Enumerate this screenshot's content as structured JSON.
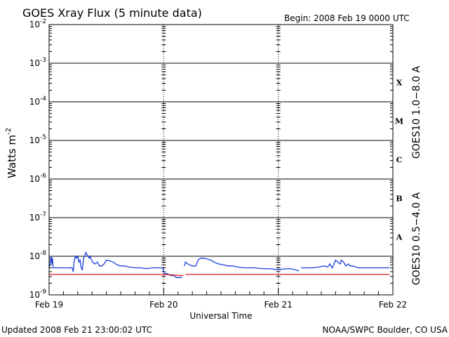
{
  "chart_data": {
    "type": "line",
    "title": "GOES Xray Flux (5 minute data)",
    "begin_label": "Begin:  2008 Feb 19 0000 UTC",
    "xlabel": "Universal Time",
    "ylabel": "Watts m",
    "ylabel_sup": "-2",
    "yscale": "log",
    "ylim_exp": [
      -9,
      -2
    ],
    "y_ticks": [
      {
        "base": "10",
        "exp": "-9",
        "value": -9
      },
      {
        "base": "10",
        "exp": "-8",
        "value": -8
      },
      {
        "base": "10",
        "exp": "-7",
        "value": -7
      },
      {
        "base": "10",
        "exp": "-6",
        "value": -6
      },
      {
        "base": "10",
        "exp": "-5",
        "value": -5
      },
      {
        "base": "10",
        "exp": "-4",
        "value": -4
      },
      {
        "base": "10",
        "exp": "-3",
        "value": -3
      },
      {
        "base": "10",
        "exp": "-2",
        "value": -2
      }
    ],
    "x_ticks": [
      {
        "label": "Feb 19",
        "day": 0
      },
      {
        "label": "Feb 20",
        "day": 1
      },
      {
        "label": "Feb 21",
        "day": 2
      },
      {
        "label": "Feb 22",
        "day": 3
      }
    ],
    "flare_classes": [
      {
        "label": "A",
        "value": -7.5
      },
      {
        "label": "B",
        "value": -6.5
      },
      {
        "label": "C",
        "value": -5.5
      },
      {
        "label": "M",
        "value": -4.5
      },
      {
        "label": "X",
        "value": -3.5
      }
    ],
    "series": [
      {
        "name": "GOES10 0.5−4.0 A",
        "color": "#1a3fe0",
        "points": [
          [
            0.0,
            -8.3
          ],
          [
            0.01,
            -8.15
          ],
          [
            0.02,
            -8.0
          ],
          [
            0.025,
            -8.2
          ],
          [
            0.03,
            -8.05
          ],
          [
            0.035,
            -8.3
          ],
          [
            0.05,
            -8.3
          ],
          [
            0.1,
            -8.3
          ],
          [
            0.18,
            -8.3
          ],
          [
            0.2,
            -8.3
          ],
          [
            0.21,
            -8.4
          ],
          [
            0.22,
            -8.1
          ],
          [
            0.23,
            -8.0
          ],
          [
            0.24,
            -8.05
          ],
          [
            0.25,
            -8.0
          ],
          [
            0.26,
            -8.15
          ],
          [
            0.27,
            -8.1
          ],
          [
            0.28,
            -8.3
          ],
          [
            0.29,
            -8.35
          ],
          [
            0.3,
            -8.05
          ],
          [
            0.31,
            -8.0
          ],
          [
            0.32,
            -7.9
          ],
          [
            0.33,
            -7.95
          ],
          [
            0.34,
            -8.0
          ],
          [
            0.35,
            -8.05
          ],
          [
            0.36,
            -8.0
          ],
          [
            0.37,
            -8.1
          ],
          [
            0.38,
            -8.15
          ],
          [
            0.4,
            -8.2
          ],
          [
            0.42,
            -8.15
          ],
          [
            0.44,
            -8.25
          ],
          [
            0.46,
            -8.25
          ],
          [
            0.48,
            -8.2
          ],
          [
            0.5,
            -8.1
          ],
          [
            0.53,
            -8.12
          ],
          [
            0.56,
            -8.15
          ],
          [
            0.58,
            -8.2
          ],
          [
            0.62,
            -8.25
          ],
          [
            0.66,
            -8.25
          ],
          [
            0.7,
            -8.28
          ],
          [
            0.75,
            -8.3
          ],
          [
            0.8,
            -8.3
          ],
          [
            0.85,
            -8.32
          ],
          [
            0.9,
            -8.3
          ],
          [
            0.95,
            -8.3
          ],
          [
            0.99,
            -8.3
          ],
          [
            1.0,
            -8.4
          ],
          [
            1.01,
            -8.45
          ],
          [
            1.03,
            -8.45
          ],
          [
            1.06,
            -8.5
          ],
          [
            1.09,
            -8.5
          ],
          [
            1.11,
            -8.55
          ],
          [
            1.13,
            -8.55
          ],
          [
            1.16,
            -8.55
          ],
          [
            null,
            null
          ],
          [
            1.18,
            -8.25
          ],
          [
            1.19,
            -8.15
          ],
          [
            1.21,
            -8.2
          ],
          [
            1.25,
            -8.25
          ],
          [
            1.28,
            -8.25
          ],
          [
            1.3,
            -8.1
          ],
          [
            1.32,
            -8.05
          ],
          [
            1.35,
            -8.05
          ],
          [
            1.38,
            -8.07
          ],
          [
            1.41,
            -8.1
          ],
          [
            1.44,
            -8.15
          ],
          [
            1.48,
            -8.2
          ],
          [
            1.52,
            -8.22
          ],
          [
            1.56,
            -8.25
          ],
          [
            1.6,
            -8.25
          ],
          [
            1.65,
            -8.28
          ],
          [
            1.7,
            -8.3
          ],
          [
            1.75,
            -8.3
          ],
          [
            1.8,
            -8.3
          ],
          [
            1.85,
            -8.32
          ],
          [
            1.9,
            -8.32
          ],
          [
            1.95,
            -8.33
          ],
          [
            2.0,
            -8.35
          ],
          [
            2.05,
            -8.33
          ],
          [
            2.1,
            -8.32
          ],
          [
            2.15,
            -8.35
          ],
          [
            2.18,
            -8.38
          ],
          [
            null,
            null
          ],
          [
            2.2,
            -8.3
          ],
          [
            2.25,
            -8.3
          ],
          [
            2.3,
            -8.3
          ],
          [
            2.35,
            -8.28
          ],
          [
            2.4,
            -8.25
          ],
          [
            2.43,
            -8.28
          ],
          [
            2.45,
            -8.2
          ],
          [
            2.47,
            -8.3
          ],
          [
            2.48,
            -8.25
          ],
          [
            2.5,
            -8.1
          ],
          [
            2.52,
            -8.15
          ],
          [
            2.54,
            -8.2
          ],
          [
            2.55,
            -8.1
          ],
          [
            2.57,
            -8.15
          ],
          [
            2.59,
            -8.25
          ],
          [
            2.61,
            -8.2
          ],
          [
            2.63,
            -8.25
          ],
          [
            2.65,
            -8.25
          ],
          [
            2.7,
            -8.3
          ],
          [
            2.75,
            -8.3
          ],
          [
            2.8,
            -8.3
          ],
          [
            2.85,
            -8.3
          ],
          [
            2.9,
            -8.3
          ],
          [
            2.95,
            -8.3
          ],
          [
            2.97,
            -8.3
          ]
        ]
      },
      {
        "name": "GOES10 1.0−8.0 A",
        "color": "#e0181a",
        "points": [
          [
            0.0,
            -8.47
          ],
          [
            0.5,
            -8.47
          ],
          [
            0.99,
            -8.47
          ],
          [
            1.0,
            -8.47
          ],
          [
            1.05,
            -8.48
          ],
          [
            1.1,
            -8.49
          ],
          [
            1.15,
            -8.5
          ],
          [
            1.17,
            -8.5
          ],
          [
            null,
            null
          ],
          [
            1.19,
            -8.47
          ],
          [
            1.5,
            -8.47
          ],
          [
            2.0,
            -8.47
          ],
          [
            2.5,
            -8.47
          ],
          [
            2.97,
            -8.47
          ]
        ]
      }
    ],
    "footer_left": "Updated 2008 Feb 21 23:00:02 UTC",
    "footer_right": "NOAA/SWPC Boulder, CO USA"
  }
}
